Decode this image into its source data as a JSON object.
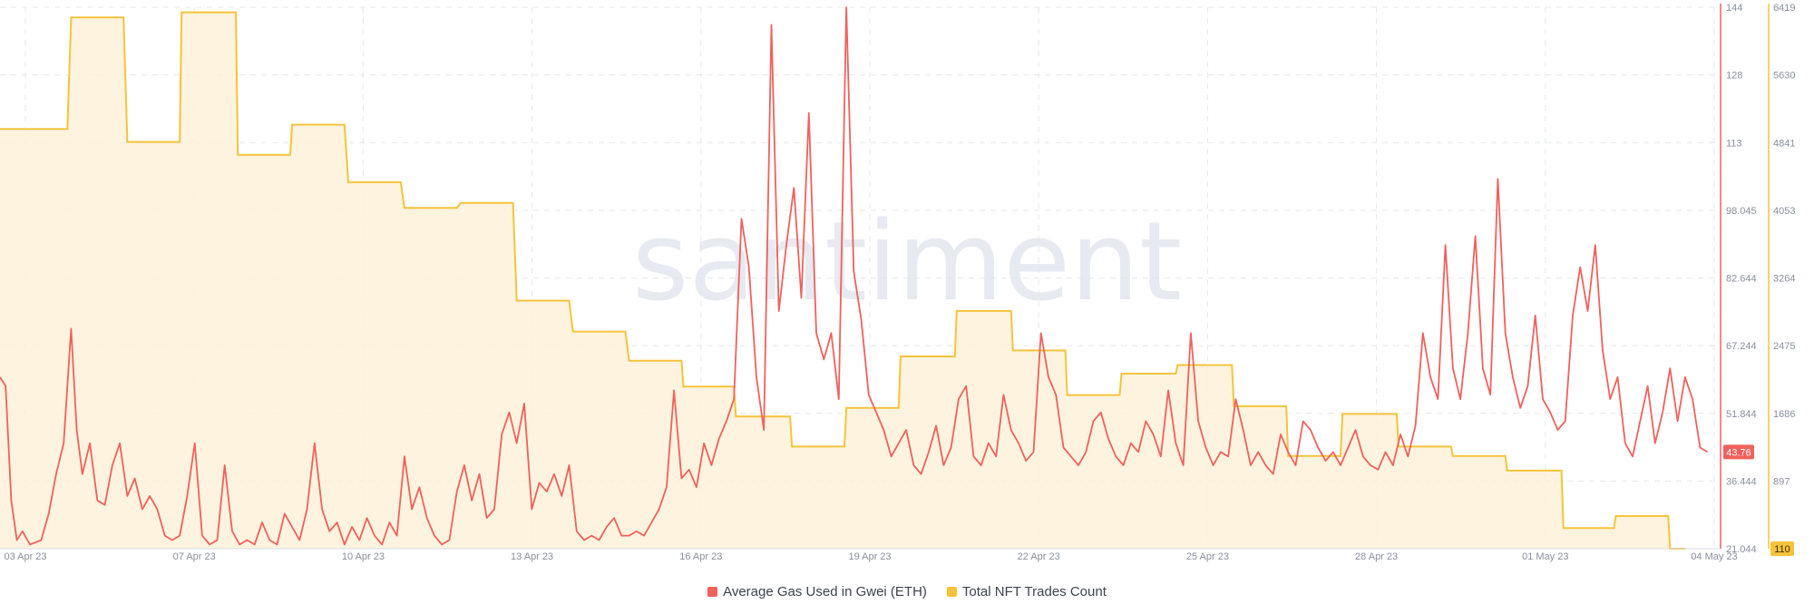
{
  "watermark": "santiment",
  "legend": [
    {
      "label": "Average Gas Used in Gwei (ETH)",
      "color": "#f0615c"
    },
    {
      "label": "Total NFT Trades Count",
      "color": "#f5c43b"
    }
  ],
  "chart_data": {
    "type": "line",
    "x_ticks": [
      "03 Apr 23",
      "07 Apr 23",
      "10 Apr 23",
      "13 Apr 23",
      "16 Apr 23",
      "19 Apr 23",
      "22 Apr 23",
      "25 Apr 23",
      "28 Apr 23",
      "01 May 23",
      "04 May 23"
    ],
    "x_range": [
      "03 Apr 23",
      "04 May 23"
    ],
    "y_left": {
      "ticks": [
        "144",
        "128",
        "113",
        "98.045",
        "82.644",
        "67.244",
        "51.844",
        "36.444",
        "21.044"
      ],
      "range": [
        21.044,
        144
      ],
      "color": "#f0615c"
    },
    "y_right": {
      "ticks": [
        "6419",
        "5630",
        "4841",
        "4053",
        "3264",
        "2475",
        "1686",
        "897",
        "110"
      ],
      "range": [
        110,
        6419
      ],
      "color": "#f5c43b"
    },
    "grid": true,
    "legend_position": "bottom-center",
    "series": [
      {
        "name": "Average Gas Used in Gwei (ETH)",
        "axis": "left",
        "color": "#f0615c",
        "last_value_label": "43.76",
        "points": [
          [
            0,
            60
          ],
          [
            0.15,
            58
          ],
          [
            0.3,
            32
          ],
          [
            0.45,
            23
          ],
          [
            0.6,
            25
          ],
          [
            0.8,
            22
          ],
          [
            1.1,
            23
          ],
          [
            1.3,
            29
          ],
          [
            1.5,
            38
          ],
          [
            1.7,
            45
          ],
          [
            1.9,
            71
          ],
          [
            2.05,
            48
          ],
          [
            2.2,
            38
          ],
          [
            2.4,
            45
          ],
          [
            2.6,
            32
          ],
          [
            2.8,
            31
          ],
          [
            3.0,
            40
          ],
          [
            3.2,
            45
          ],
          [
            3.4,
            33
          ],
          [
            3.6,
            37
          ],
          [
            3.8,
            30
          ],
          [
            4.0,
            33
          ],
          [
            4.2,
            30
          ],
          [
            4.4,
            24
          ],
          [
            4.6,
            23
          ],
          [
            4.8,
            24
          ],
          [
            5.0,
            33
          ],
          [
            5.2,
            45
          ],
          [
            5.4,
            24
          ],
          [
            5.6,
            22
          ],
          [
            5.8,
            23
          ],
          [
            6.0,
            40
          ],
          [
            6.2,
            25
          ],
          [
            6.4,
            22
          ],
          [
            6.6,
            23
          ],
          [
            6.8,
            22
          ],
          [
            7.0,
            27
          ],
          [
            7.2,
            23
          ],
          [
            7.4,
            22
          ],
          [
            7.6,
            29
          ],
          [
            7.8,
            26
          ],
          [
            8.0,
            23
          ],
          [
            8.2,
            30
          ],
          [
            8.4,
            45
          ],
          [
            8.6,
            30
          ],
          [
            8.8,
            25
          ],
          [
            9.0,
            27
          ],
          [
            9.2,
            22
          ],
          [
            9.4,
            26
          ],
          [
            9.6,
            23
          ],
          [
            9.8,
            28
          ],
          [
            10.0,
            24
          ],
          [
            10.2,
            22
          ],
          [
            10.4,
            27
          ],
          [
            10.6,
            24
          ],
          [
            10.8,
            42
          ],
          [
            11.0,
            30
          ],
          [
            11.2,
            35
          ],
          [
            11.4,
            28
          ],
          [
            11.6,
            24
          ],
          [
            11.8,
            22
          ],
          [
            12.0,
            23
          ],
          [
            12.2,
            34
          ],
          [
            12.4,
            40
          ],
          [
            12.6,
            32
          ],
          [
            12.8,
            38
          ],
          [
            13.0,
            28
          ],
          [
            13.2,
            30
          ],
          [
            13.4,
            47
          ],
          [
            13.6,
            52
          ],
          [
            13.8,
            45
          ],
          [
            14.0,
            54
          ],
          [
            14.2,
            30
          ],
          [
            14.4,
            36
          ],
          [
            14.6,
            34
          ],
          [
            14.8,
            38
          ],
          [
            15.0,
            33
          ],
          [
            15.2,
            40
          ],
          [
            15.4,
            25
          ],
          [
            15.6,
            23
          ],
          [
            15.8,
            24
          ],
          [
            16.0,
            23
          ],
          [
            16.2,
            26
          ],
          [
            16.4,
            28
          ],
          [
            16.6,
            24
          ],
          [
            16.8,
            24
          ],
          [
            17.0,
            25
          ],
          [
            17.2,
            24
          ],
          [
            17.4,
            27
          ],
          [
            17.6,
            30
          ],
          [
            17.8,
            35
          ],
          [
            18.0,
            57
          ],
          [
            18.2,
            37
          ],
          [
            18.4,
            39
          ],
          [
            18.6,
            35
          ],
          [
            18.8,
            45
          ],
          [
            19.0,
            40
          ],
          [
            19.2,
            46
          ],
          [
            19.4,
            50
          ],
          [
            19.6,
            55
          ],
          [
            19.8,
            96
          ],
          [
            20.0,
            85
          ],
          [
            20.2,
            60
          ],
          [
            20.4,
            48
          ],
          [
            20.6,
            140
          ],
          [
            20.8,
            75
          ],
          [
            21.0,
            90
          ],
          [
            21.2,
            103
          ],
          [
            21.4,
            78
          ],
          [
            21.6,
            120
          ],
          [
            21.8,
            70
          ],
          [
            22.0,
            64
          ],
          [
            22.2,
            70
          ],
          [
            22.4,
            55
          ],
          [
            22.6,
            144
          ],
          [
            22.8,
            84
          ],
          [
            23.0,
            73
          ],
          [
            23.2,
            56
          ],
          [
            23.4,
            52
          ],
          [
            23.6,
            48
          ],
          [
            23.8,
            42
          ],
          [
            24.0,
            45
          ],
          [
            24.2,
            48
          ],
          [
            24.4,
            40
          ],
          [
            24.6,
            38
          ],
          [
            24.8,
            43
          ],
          [
            25.0,
            49
          ],
          [
            25.2,
            40
          ],
          [
            25.4,
            44
          ],
          [
            25.6,
            55
          ],
          [
            25.8,
            58
          ],
          [
            26.0,
            42
          ],
          [
            26.2,
            40
          ],
          [
            26.4,
            45
          ],
          [
            26.6,
            42
          ],
          [
            26.8,
            56
          ],
          [
            27.0,
            48
          ],
          [
            27.2,
            45
          ],
          [
            27.4,
            41
          ],
          [
            27.6,
            43
          ],
          [
            27.8,
            70
          ],
          [
            28.0,
            60
          ],
          [
            28.2,
            56
          ],
          [
            28.4,
            44
          ],
          [
            28.6,
            42
          ],
          [
            28.8,
            40
          ],
          [
            29.0,
            43
          ],
          [
            29.2,
            50
          ],
          [
            29.4,
            52
          ],
          [
            29.6,
            46
          ],
          [
            29.8,
            42
          ],
          [
            30.0,
            40
          ],
          [
            30.2,
            45
          ],
          [
            30.4,
            43
          ],
          [
            30.6,
            50
          ],
          [
            30.8,
            47
          ],
          [
            31.0,
            42
          ],
          [
            31.2,
            57
          ],
          [
            31.4,
            45
          ],
          [
            31.6,
            40
          ],
          [
            31.8,
            70
          ],
          [
            32.0,
            50
          ],
          [
            32.2,
            44
          ],
          [
            32.4,
            40
          ],
          [
            32.6,
            43
          ],
          [
            32.8,
            42
          ],
          [
            33.0,
            55
          ],
          [
            33.2,
            48
          ],
          [
            33.4,
            40
          ],
          [
            33.6,
            43
          ],
          [
            33.8,
            40
          ],
          [
            34.0,
            38
          ],
          [
            34.2,
            47
          ],
          [
            34.4,
            43
          ],
          [
            34.6,
            40
          ],
          [
            34.8,
            50
          ],
          [
            35.0,
            48
          ],
          [
            35.2,
            44
          ],
          [
            35.4,
            41
          ],
          [
            35.6,
            43
          ],
          [
            35.8,
            40
          ],
          [
            36.0,
            44
          ],
          [
            36.2,
            48
          ],
          [
            36.4,
            42
          ],
          [
            36.6,
            40
          ],
          [
            36.8,
            39
          ],
          [
            37.0,
            43
          ],
          [
            37.2,
            40
          ],
          [
            37.4,
            47
          ],
          [
            37.6,
            42
          ],
          [
            37.8,
            49
          ],
          [
            38.0,
            70
          ],
          [
            38.2,
            60
          ],
          [
            38.4,
            55
          ],
          [
            38.6,
            90
          ],
          [
            38.8,
            62
          ],
          [
            39.0,
            55
          ],
          [
            39.2,
            70
          ],
          [
            39.4,
            92
          ],
          [
            39.6,
            62
          ],
          [
            39.8,
            56
          ],
          [
            40.0,
            105
          ],
          [
            40.2,
            70
          ],
          [
            40.4,
            60
          ],
          [
            40.6,
            53
          ],
          [
            40.8,
            58
          ],
          [
            41.0,
            74
          ],
          [
            41.2,
            55
          ],
          [
            41.4,
            52
          ],
          [
            41.6,
            48
          ],
          [
            41.8,
            50
          ],
          [
            42.0,
            74
          ],
          [
            42.2,
            85
          ],
          [
            42.4,
            75
          ],
          [
            42.6,
            90
          ],
          [
            42.8,
            66
          ],
          [
            43.0,
            55
          ],
          [
            43.2,
            60
          ],
          [
            43.4,
            45
          ],
          [
            43.6,
            42
          ],
          [
            43.8,
            50
          ],
          [
            44.0,
            58
          ],
          [
            44.2,
            45
          ],
          [
            44.4,
            52
          ],
          [
            44.6,
            62
          ],
          [
            44.8,
            50
          ],
          [
            45.0,
            60
          ],
          [
            45.2,
            55
          ],
          [
            45.4,
            44
          ],
          [
            45.6,
            43
          ]
        ]
      },
      {
        "name": "Total NFT Trades Count",
        "axis": "right",
        "color": "#f5c43b",
        "last_value_label": "110",
        "points": [
          [
            0,
            5000
          ],
          [
            1.8,
            5000
          ],
          [
            1.9,
            6300
          ],
          [
            3.3,
            6300
          ],
          [
            3.4,
            4850
          ],
          [
            4.8,
            4850
          ],
          [
            4.85,
            6360
          ],
          [
            6.3,
            6360
          ],
          [
            6.35,
            4700
          ],
          [
            7.75,
            4700
          ],
          [
            7.8,
            5050
          ],
          [
            9.2,
            5050
          ],
          [
            9.3,
            4380
          ],
          [
            10.7,
            4380
          ],
          [
            10.8,
            4080
          ],
          [
            12.2,
            4080
          ],
          [
            12.3,
            4140
          ],
          [
            13.7,
            4140
          ],
          [
            13.8,
            3000
          ],
          [
            15.2,
            3000
          ],
          [
            15.3,
            2640
          ],
          [
            16.7,
            2640
          ],
          [
            16.8,
            2300
          ],
          [
            18.2,
            2300
          ],
          [
            18.25,
            2000
          ],
          [
            19.6,
            2000
          ],
          [
            19.65,
            1650
          ],
          [
            21.1,
            1650
          ],
          [
            21.15,
            1300
          ],
          [
            22.55,
            1300
          ],
          [
            22.6,
            1750
          ],
          [
            24.0,
            1750
          ],
          [
            24.05,
            2350
          ],
          [
            25.5,
            2350
          ],
          [
            25.55,
            2880
          ],
          [
            27.0,
            2880
          ],
          [
            27.05,
            2420
          ],
          [
            28.45,
            2420
          ],
          [
            28.5,
            1900
          ],
          [
            29.9,
            1900
          ],
          [
            29.95,
            2150
          ],
          [
            31.4,
            2150
          ],
          [
            31.45,
            2250
          ],
          [
            32.9,
            2250
          ],
          [
            32.95,
            1770
          ],
          [
            34.35,
            1770
          ],
          [
            34.4,
            1190
          ],
          [
            35.8,
            1190
          ],
          [
            35.85,
            1680
          ],
          [
            37.3,
            1680
          ],
          [
            37.35,
            1300
          ],
          [
            38.75,
            1300
          ],
          [
            38.8,
            1190
          ],
          [
            40.2,
            1190
          ],
          [
            40.25,
            1020
          ],
          [
            41.7,
            1020
          ],
          [
            41.75,
            350
          ],
          [
            43.1,
            350
          ],
          [
            43.15,
            490
          ],
          [
            44.55,
            490
          ],
          [
            44.6,
            110
          ],
          [
            45.0,
            110
          ]
        ]
      }
    ]
  }
}
